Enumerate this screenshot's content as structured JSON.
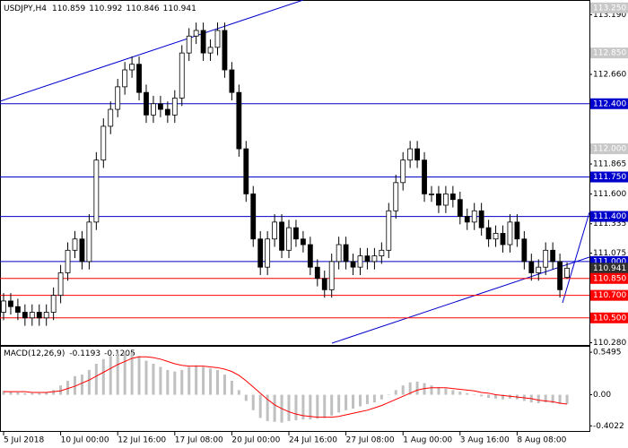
{
  "chart_data": [
    {
      "type": "candlestick",
      "symbol": "USDJPY,H4",
      "categories": [
        "5 Jul 2018",
        null,
        null,
        null,
        null,
        null,
        null,
        null,
        "10 Jul 00:00",
        null,
        null,
        null,
        null,
        null,
        null,
        null,
        "12 Jul 16:00",
        null,
        null,
        null,
        null,
        null,
        null,
        null,
        "17 Jul 08:00",
        null,
        null,
        null,
        null,
        null,
        null,
        null,
        "20 Jul 00:00",
        null,
        null,
        null,
        null,
        null,
        null,
        null,
        "24 Jul 16:00",
        null,
        null,
        null,
        null,
        null,
        null,
        null,
        "27 Jul 08:00",
        null,
        null,
        null,
        null,
        null,
        null,
        null,
        "1 Aug 00:00",
        null,
        null,
        null,
        null,
        null,
        null,
        null,
        "3 Aug 16:00",
        null,
        null,
        null,
        null,
        null,
        null,
        null,
        "8 Aug 08:00",
        null,
        null,
        null,
        null,
        null,
        null,
        null
      ],
      "open": [
        110.55,
        110.65,
        110.6,
        110.55,
        110.5,
        110.55,
        110.5,
        110.55,
        110.7,
        110.9,
        111.1,
        111.2,
        111.0,
        111.35,
        111.9,
        112.2,
        112.35,
        112.55,
        112.7,
        112.75,
        112.5,
        112.3,
        112.4,
        112.35,
        112.3,
        112.45,
        112.85,
        113.0,
        113.05,
        112.85,
        112.9,
        113.05,
        112.7,
        112.5,
        112.0,
        111.6,
        111.2,
        110.95,
        111.2,
        111.35,
        111.1,
        111.3,
        111.2,
        111.15,
        110.95,
        110.85,
        110.75,
        111.0,
        111.15,
        111.0,
        110.95,
        111.05,
        111.0,
        111.05,
        111.1,
        111.45,
        111.7,
        111.9,
        112.0,
        111.9,
        111.6,
        111.6,
        111.5,
        111.6,
        111.55,
        111.4,
        111.35,
        111.45,
        111.3,
        111.2,
        111.25,
        111.15,
        111.35,
        111.2,
        111.0,
        110.9,
        110.95,
        111.1,
        111.0,
        110.859
      ],
      "high": [
        110.72,
        110.72,
        110.67,
        110.62,
        110.62,
        110.62,
        110.62,
        110.77,
        110.97,
        111.17,
        111.27,
        111.27,
        111.42,
        111.97,
        112.27,
        112.42,
        112.62,
        112.77,
        112.82,
        112.82,
        112.57,
        112.47,
        112.47,
        112.42,
        112.52,
        112.92,
        113.07,
        113.12,
        113.12,
        112.97,
        113.12,
        113.12,
        112.77,
        112.57,
        112.07,
        111.67,
        111.27,
        111.27,
        111.42,
        111.42,
        111.37,
        111.37,
        111.27,
        111.22,
        111.02,
        110.92,
        111.07,
        111.22,
        111.22,
        111.07,
        111.12,
        111.12,
        111.12,
        111.17,
        111.52,
        111.77,
        111.97,
        112.07,
        112.07,
        111.97,
        111.67,
        111.67,
        111.67,
        111.67,
        111.62,
        111.47,
        111.52,
        111.52,
        111.37,
        111.32,
        111.32,
        111.42,
        111.42,
        111.27,
        111.07,
        111.02,
        111.17,
        111.17,
        111.07,
        110.992
      ],
      "low": [
        110.48,
        110.53,
        110.48,
        110.43,
        110.43,
        110.43,
        110.43,
        110.48,
        110.63,
        110.83,
        111.03,
        110.93,
        110.93,
        111.28,
        111.83,
        112.13,
        112.28,
        112.48,
        112.63,
        112.43,
        112.23,
        112.23,
        112.28,
        112.23,
        112.23,
        112.38,
        112.78,
        112.93,
        112.78,
        112.78,
        112.83,
        112.63,
        112.43,
        111.93,
        111.53,
        111.13,
        110.88,
        110.88,
        111.13,
        111.03,
        111.03,
        111.13,
        111.08,
        110.88,
        110.78,
        110.68,
        110.68,
        110.93,
        110.93,
        110.88,
        110.88,
        110.93,
        110.93,
        110.98,
        111.03,
        111.38,
        111.63,
        111.83,
        111.83,
        111.53,
        111.53,
        111.43,
        111.43,
        111.48,
        111.33,
        111.28,
        111.28,
        111.23,
        111.13,
        111.13,
        111.08,
        111.08,
        111.13,
        110.93,
        110.83,
        110.83,
        110.88,
        110.93,
        110.68,
        110.846
      ],
      "close": [
        110.65,
        110.6,
        110.55,
        110.5,
        110.55,
        110.5,
        110.55,
        110.7,
        110.9,
        111.1,
        111.2,
        111.0,
        111.35,
        111.9,
        112.2,
        112.35,
        112.55,
        112.7,
        112.75,
        112.5,
        112.3,
        112.4,
        112.35,
        112.3,
        112.45,
        112.85,
        113.0,
        113.05,
        112.85,
        112.9,
        113.05,
        112.7,
        112.5,
        112.0,
        111.6,
        111.2,
        110.95,
        111.2,
        111.35,
        111.1,
        111.3,
        111.2,
        111.15,
        110.95,
        110.85,
        110.75,
        111.0,
        111.15,
        111.0,
        110.95,
        111.05,
        111.0,
        111.05,
        111.1,
        111.45,
        111.7,
        111.9,
        112.0,
        111.9,
        111.6,
        111.6,
        111.5,
        111.6,
        111.55,
        111.4,
        111.35,
        111.45,
        111.3,
        111.2,
        111.25,
        111.15,
        111.35,
        111.2,
        111.0,
        110.9,
        110.95,
        111.1,
        111.0,
        110.75,
        110.941
      ],
      "up_color": "#ffffff",
      "down_color": "#000000",
      "ylim": [
        110.26,
        113.32
      ],
      "yticks": [
        {
          "value": 113.19,
          "label": "113.190"
        },
        {
          "value": 112.66,
          "label": "112.660"
        },
        {
          "value": 111.865,
          "label": "111.865"
        },
        {
          "value": 111.6,
          "label": "111.600"
        },
        {
          "value": 111.335,
          "label": "111.335"
        },
        {
          "value": 111.075,
          "label": "111.075"
        },
        {
          "value": 110.28,
          "label": "110.280"
        }
      ],
      "levels": [
        {
          "value": 113.25,
          "label": "113.250",
          "color": "#c8c8c8",
          "line": false
        },
        {
          "value": 112.85,
          "label": "112.850",
          "color": "#c8c8c8",
          "line": false
        },
        {
          "value": 112.4,
          "label": "112.400",
          "color": "#0000cc",
          "line": true
        },
        {
          "value": 112.0,
          "label": "112.000",
          "color": "#c8c8c8",
          "line": false
        },
        {
          "value": 111.75,
          "label": "111.750",
          "color": "#0000cc",
          "line": true
        },
        {
          "value": 111.4,
          "label": "111.400",
          "color": "#0000cc",
          "line": true
        },
        {
          "value": 111.0,
          "label": "111.000",
          "color": "#0000cc",
          "line": true
        },
        {
          "value": 110.941,
          "label": "110.941",
          "color": "#303030",
          "line": false
        },
        {
          "value": 110.85,
          "label": "110.850",
          "color": "#ff0000",
          "line": true
        },
        {
          "value": 110.7,
          "label": "110.700",
          "color": "#ff0000",
          "line": true
        },
        {
          "value": 110.5,
          "label": "110.500",
          "color": "#ff0000",
          "line": true
        }
      ]
    },
    {
      "type": "macd",
      "title": "MACD(12,26,9)",
      "ylim": [
        -0.48,
        0.62
      ],
      "yticks": [
        0.5495,
        {
          "value": 0,
          "label": "0.00"
        },
        -0.4022
      ],
      "series": [
        {
          "style": "histogram",
          "color": "#c0c0c0",
          "values": [
            0.05,
            0.04,
            0.03,
            0.02,
            0.02,
            0.02,
            0.03,
            0.06,
            0.12,
            0.18,
            0.24,
            0.26,
            0.32,
            0.4,
            0.46,
            0.5,
            0.53,
            0.55,
            0.54,
            0.5,
            0.44,
            0.4,
            0.36,
            0.32,
            0.3,
            0.32,
            0.36,
            0.38,
            0.36,
            0.34,
            0.32,
            0.26,
            0.18,
            0.06,
            -0.08,
            -0.2,
            -0.3,
            -0.34,
            -0.35,
            -0.36,
            -0.34,
            -0.33,
            -0.32,
            -0.32,
            -0.31,
            -0.3,
            -0.27,
            -0.23,
            -0.2,
            -0.18,
            -0.15,
            -0.12,
            -0.1,
            -0.06,
            0.0,
            0.06,
            0.12,
            0.16,
            0.17,
            0.15,
            0.12,
            0.1,
            0.08,
            0.06,
            0.04,
            0.02,
            0.0,
            -0.02,
            -0.04,
            -0.05,
            -0.06,
            -0.05,
            -0.06,
            -0.08,
            -0.1,
            -0.11,
            -0.1,
            -0.11,
            -0.12,
            -0.1193
          ]
        },
        {
          "style": "line",
          "color": "#ff0000",
          "values": [
            0.04,
            0.04,
            0.04,
            0.04,
            0.03,
            0.03,
            0.03,
            0.04,
            0.05,
            0.08,
            0.11,
            0.15,
            0.19,
            0.24,
            0.29,
            0.34,
            0.39,
            0.43,
            0.47,
            0.49,
            0.49,
            0.48,
            0.46,
            0.43,
            0.4,
            0.38,
            0.37,
            0.37,
            0.37,
            0.36,
            0.35,
            0.33,
            0.3,
            0.25,
            0.18,
            0.1,
            0.02,
            -0.06,
            -0.13,
            -0.18,
            -0.22,
            -0.25,
            -0.27,
            -0.28,
            -0.29,
            -0.29,
            -0.29,
            -0.28,
            -0.26,
            -0.24,
            -0.22,
            -0.2,
            -0.17,
            -0.14,
            -0.1,
            -0.06,
            -0.02,
            0.02,
            0.06,
            0.08,
            0.09,
            0.09,
            0.09,
            0.08,
            0.07,
            0.06,
            0.05,
            0.03,
            0.02,
            0.0,
            -0.01,
            -0.02,
            -0.03,
            -0.04,
            -0.05,
            -0.07,
            -0.08,
            -0.09,
            -0.11,
            -0.1205
          ]
        }
      ]
    }
  ]
}
